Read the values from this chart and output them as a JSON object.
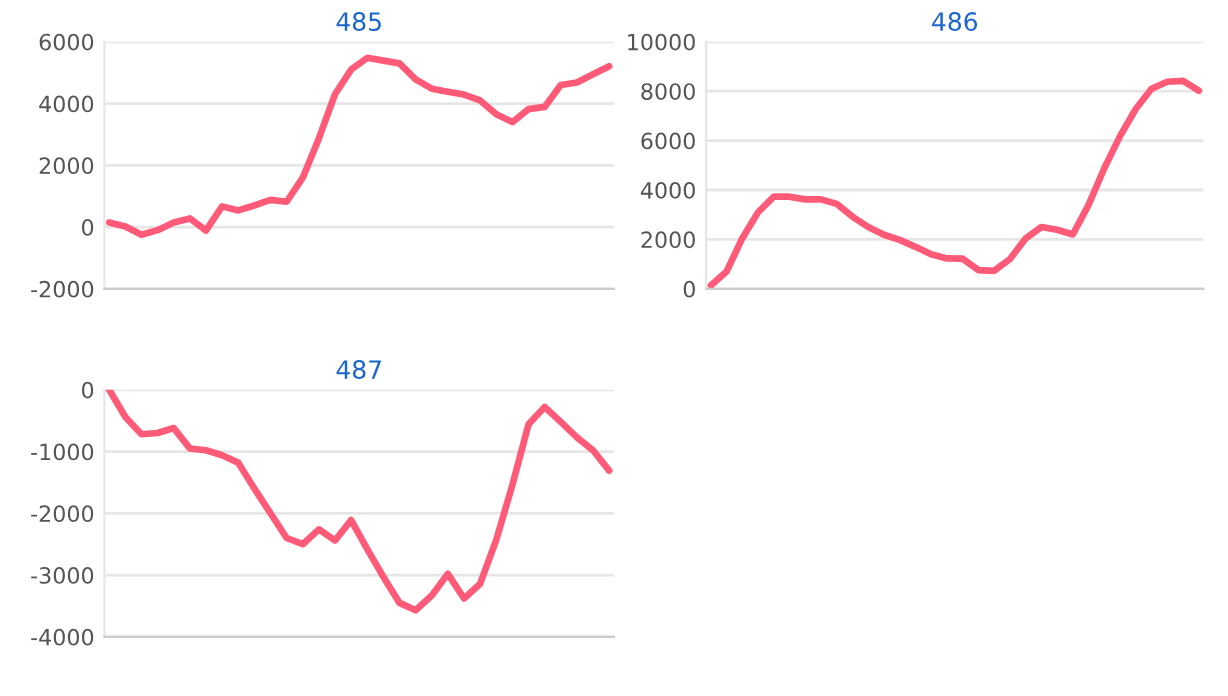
{
  "chart_data": [
    {
      "type": "line",
      "title": "485",
      "categories": [
        null,
        null,
        null,
        null,
        null,
        null,
        null,
        null,
        null,
        null,
        null,
        null,
        null,
        null,
        null,
        null,
        null,
        null,
        null,
        null,
        null,
        null,
        null,
        null,
        null,
        null,
        null,
        null,
        null,
        null,
        null,
        null
      ],
      "ylim": [
        -2000,
        6000
      ],
      "yticks": [
        -2000,
        0,
        2000,
        4000,
        6000
      ],
      "grid": "y",
      "legend": false,
      "marker": "none",
      "line_style": "solid",
      "series": [
        {
          "color": "#ff5a78",
          "values": [
            150,
            20,
            -250,
            -100,
            150,
            280,
            -110,
            670,
            540,
            700,
            880,
            820,
            1600,
            2870,
            4300,
            5100,
            5480,
            5390,
            5300,
            4780,
            4480,
            4380,
            4290,
            4100,
            3650,
            3400,
            3820,
            3890,
            4600,
            4680,
            4950,
            5210
          ]
        }
      ]
    },
    {
      "type": "line",
      "title": "486",
      "categories": [
        null,
        null,
        null,
        null,
        null,
        null,
        null,
        null,
        null,
        null,
        null,
        null,
        null,
        null,
        null,
        null,
        null,
        null,
        null,
        null,
        null,
        null,
        null,
        null,
        null,
        null,
        null,
        null,
        null,
        null,
        null,
        null
      ],
      "ylim": [
        0,
        10000
      ],
      "yticks": [
        0,
        2000,
        4000,
        6000,
        8000,
        10000
      ],
      "grid": "y",
      "legend": false,
      "marker": "none",
      "line_style": "solid",
      "series": [
        {
          "color": "#ff5a78",
          "values": [
            140,
            700,
            2050,
            3100,
            3730,
            3730,
            3620,
            3620,
            3440,
            2920,
            2500,
            2190,
            1980,
            1700,
            1400,
            1230,
            1220,
            760,
            730,
            1200,
            2040,
            2500,
            2390,
            2200,
            3400,
            4880,
            6180,
            7280,
            8100,
            8380,
            8420,
            8020
          ]
        }
      ]
    },
    {
      "type": "line",
      "title": "487",
      "categories": [
        null,
        null,
        null,
        null,
        null,
        null,
        null,
        null,
        null,
        null,
        null,
        null,
        null,
        null,
        null,
        null,
        null,
        null,
        null,
        null,
        null,
        null,
        null,
        null,
        null,
        null,
        null,
        null,
        null,
        null,
        null,
        null
      ],
      "ylim": [
        -4000,
        0
      ],
      "yticks": [
        -4000,
        -3000,
        -2000,
        -1000,
        0
      ],
      "grid": "y",
      "legend": false,
      "marker": "none",
      "line_style": "solid",
      "series": [
        {
          "color": "#ff5a78",
          "values": [
            0,
            -440,
            -720,
            -700,
            -620,
            -950,
            -980,
            -1060,
            -1180,
            -1600,
            -2000,
            -2400,
            -2500,
            -2260,
            -2440,
            -2110,
            -2580,
            -3030,
            -3450,
            -3570,
            -3330,
            -2980,
            -3380,
            -3140,
            -2430,
            -1540,
            -560,
            -280,
            -520,
            -770,
            -980,
            -1310
          ]
        }
      ]
    }
  ]
}
